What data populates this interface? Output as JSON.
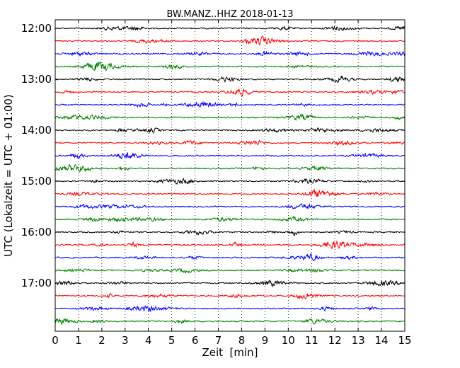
{
  "chart_data": {
    "type": "line",
    "title": "BW.MANZ..HHZ 2018-01-13",
    "xlabel": "Zeit  [min]",
    "ylabel": "UTC (Lokalzeit = UTC + 01:00)",
    "xlim": [
      0,
      15
    ],
    "x_ticks": [
      "0",
      "1",
      "2",
      "3",
      "4",
      "5",
      "6",
      "7",
      "8",
      "9",
      "10",
      "11",
      "12",
      "13",
      "14",
      "15"
    ],
    "y_tick_labels": [
      "12:00",
      "13:00",
      "14:00",
      "15:00",
      "16:00",
      "17:00"
    ],
    "traces_per_hour": 4,
    "trace_colors": [
      "#000000",
      "#ff0000",
      "#0000ff",
      "#008000"
    ],
    "grid": "vertical dotted lines at each minute",
    "traces": [
      {
        "start": "12:00"
      },
      {
        "start": "12:15"
      },
      {
        "start": "12:30"
      },
      {
        "start": "12:45"
      },
      {
        "start": "13:00"
      },
      {
        "start": "13:15"
      },
      {
        "start": "13:30"
      },
      {
        "start": "13:45"
      },
      {
        "start": "14:00"
      },
      {
        "start": "14:15"
      },
      {
        "start": "14:30"
      },
      {
        "start": "14:45"
      },
      {
        "start": "15:00"
      },
      {
        "start": "15:15"
      },
      {
        "start": "15:30"
      },
      {
        "start": "15:45"
      },
      {
        "start": "16:00"
      },
      {
        "start": "16:15"
      },
      {
        "start": "16:30"
      },
      {
        "start": "16:45"
      },
      {
        "start": "17:00"
      },
      {
        "start": "17:15"
      },
      {
        "start": "17:30"
      },
      {
        "start": "17:45"
      }
    ]
  }
}
